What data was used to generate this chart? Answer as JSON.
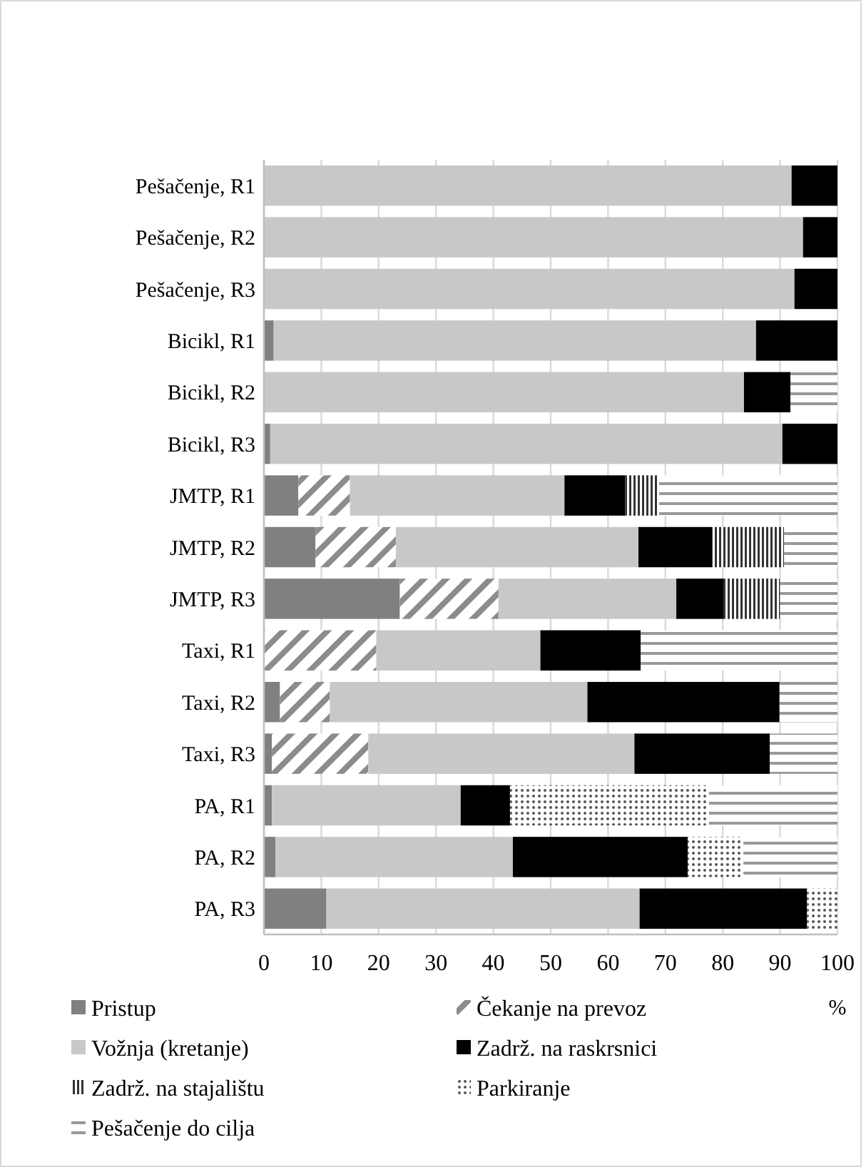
{
  "chart_data": {
    "type": "bar",
    "orientation": "horizontal",
    "stacked": true,
    "xlabel": "%",
    "categories": [
      "Pešačenje, R1",
      "Pešačenje, R2",
      "Pešačenje, R3",
      "Bicikl, R1",
      "Bicikl, R2",
      "Bicikl, R3",
      "JMTP, R1",
      "JMTP, R2",
      "JMTP, R3",
      "Taxi, R1",
      "Taxi, R2",
      "Taxi, R3",
      "PA, R1",
      "PA, R2",
      "PA, R3"
    ],
    "series": [
      {
        "name": "Pristup",
        "color": "#808080",
        "values": [
          0,
          0,
          0,
          1.7,
          0,
          1.1,
          6.0,
          9.0,
          23.7,
          0,
          2.8,
          1.4,
          1.4,
          2.0,
          10.9
        ]
      },
      {
        "name": "Čekanje na prevoz",
        "color": "#8c8c8c",
        "values": [
          0,
          0,
          0,
          0,
          0,
          0,
          9.0,
          14.0,
          17.2,
          19.6,
          8.7,
          16.8,
          0,
          0,
          0
        ]
      },
      {
        "name": "Vožnja (kretanje)",
        "color": "#c8c8c8",
        "values": [
          92,
          94,
          92.5,
          84.1,
          83.7,
          89.3,
          37.4,
          42.3,
          31.0,
          28.6,
          44.9,
          46.4,
          32.9,
          41.4,
          54.6
        ]
      },
      {
        "name": "Zadrž. na raskrsnici",
        "color": "#000000",
        "values": [
          8,
          6,
          7.5,
          14.2,
          8.1,
          9.6,
          10.6,
          12.9,
          8.2,
          17.5,
          33.5,
          23.6,
          8.6,
          30.5,
          29.2
        ]
      },
      {
        "name": "Zadrž. na stajalištu",
        "color": "#333333",
        "values": [
          0,
          0,
          0,
          0,
          0,
          0,
          5.9,
          12.5,
          9.9,
          0,
          0,
          0,
          0,
          0,
          0
        ]
      },
      {
        "name": "Parkiranje",
        "color": "#555555",
        "values": [
          0,
          0,
          0,
          0,
          0,
          0,
          0,
          0,
          0,
          0,
          0,
          0,
          34.7,
          9.7,
          5.3
        ]
      },
      {
        "name": "Pešačenje do cilja",
        "color": "#999999",
        "values": [
          0,
          0,
          0,
          0,
          8.2,
          0,
          31.1,
          9.3,
          10.0,
          34.3,
          10.1,
          11.8,
          22.4,
          16.4,
          0
        ]
      }
    ],
    "xlim": [
      0,
      100
    ],
    "xticks": [
      0,
      10,
      20,
      30,
      40,
      50,
      60,
      70,
      80,
      90,
      100
    ],
    "grid": "x",
    "legend": "bottom"
  }
}
